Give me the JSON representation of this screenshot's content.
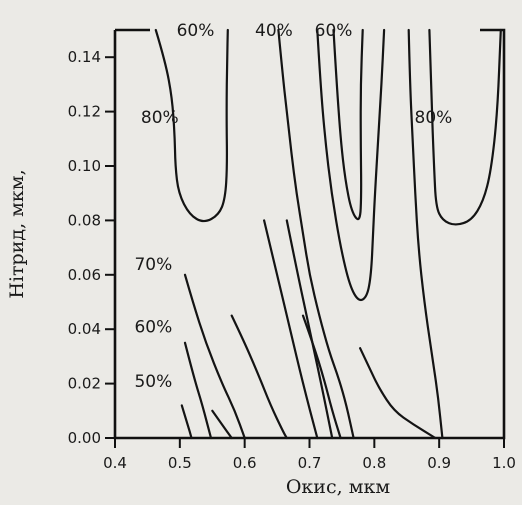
{
  "chart_data": {
    "type": "line",
    "title": "",
    "xlabel": "Окис, мкм",
    "ylabel": "Нітрид, мкм,",
    "xlim": [
      0.4,
      1.0
    ],
    "ylim": [
      0.0,
      0.15
    ],
    "x_ticks": [
      "0.4",
      "0.5",
      "0.6",
      "0.7",
      "0.8",
      "0.9",
      "1.0"
    ],
    "x_tick_values": [
      0.4,
      0.5,
      0.6,
      0.7,
      0.8,
      0.9,
      1.0
    ],
    "y_ticks": [
      "0.00",
      "0.02",
      "0.04",
      "0.06",
      "0.08",
      "0.10",
      "0.12",
      "0.14"
    ],
    "y_tick_values": [
      0.0,
      0.02,
      0.04,
      0.06,
      0.08,
      0.1,
      0.12,
      0.14
    ],
    "grid": false,
    "series": [
      {
        "label": "60%",
        "points": [
          [
            0.463,
            0.15
          ],
          [
            0.478,
            0.138
          ],
          [
            0.488,
            0.125
          ],
          [
            0.492,
            0.112
          ],
          [
            0.493,
            0.1
          ],
          [
            0.498,
            0.09
          ],
          [
            0.515,
            0.082
          ],
          [
            0.537,
            0.079
          ],
          [
            0.56,
            0.082
          ],
          [
            0.57,
            0.088
          ],
          [
            0.573,
            0.1
          ],
          [
            0.572,
            0.12
          ],
          [
            0.573,
            0.14
          ],
          [
            0.574,
            0.15
          ]
        ]
      },
      {
        "label": "",
        "points": [
          [
            0.652,
            0.15
          ],
          [
            0.658,
            0.135
          ],
          [
            0.665,
            0.12
          ],
          [
            0.672,
            0.105
          ],
          [
            0.68,
            0.09
          ],
          [
            0.69,
            0.075
          ],
          [
            0.7,
            0.06
          ],
          [
            0.715,
            0.045
          ],
          [
            0.73,
            0.032
          ],
          [
            0.745,
            0.022
          ],
          [
            0.757,
            0.012
          ],
          [
            0.768,
            0.0
          ]
        ]
      },
      {
        "label": "",
        "points": [
          [
            0.712,
            0.15
          ],
          [
            0.717,
            0.13
          ],
          [
            0.724,
            0.11
          ],
          [
            0.734,
            0.09
          ],
          [
            0.748,
            0.07
          ],
          [
            0.762,
            0.056
          ],
          [
            0.776,
            0.05
          ],
          [
            0.789,
            0.052
          ],
          [
            0.795,
            0.06
          ],
          [
            0.798,
            0.075
          ],
          [
            0.801,
            0.09
          ],
          [
            0.806,
            0.11
          ],
          [
            0.811,
            0.13
          ],
          [
            0.815,
            0.15
          ]
        ]
      },
      {
        "label": "40%",
        "points": [
          [
            0.737,
            0.15
          ],
          [
            0.742,
            0.13
          ],
          [
            0.748,
            0.11
          ],
          [
            0.755,
            0.095
          ],
          [
            0.765,
            0.083
          ],
          [
            0.778,
            0.079
          ],
          [
            0.78,
            0.09
          ],
          [
            0.779,
            0.11
          ],
          [
            0.779,
            0.13
          ],
          [
            0.782,
            0.15
          ]
        ]
      },
      {
        "label": "60%",
        "points": [
          [
            0.853,
            0.15
          ],
          [
            0.855,
            0.13
          ],
          [
            0.859,
            0.11
          ],
          [
            0.863,
            0.09
          ],
          [
            0.868,
            0.07
          ],
          [
            0.877,
            0.05
          ],
          [
            0.888,
            0.032
          ],
          [
            0.898,
            0.016
          ],
          [
            0.905,
            0.0
          ]
        ]
      },
      {
        "label": "",
        "points": [
          [
            0.885,
            0.15
          ],
          [
            0.888,
            0.125
          ],
          [
            0.892,
            0.1
          ],
          [
            0.895,
            0.085
          ],
          [
            0.905,
            0.08
          ],
          [
            0.925,
            0.078
          ],
          [
            0.95,
            0.08
          ],
          [
            0.968,
            0.087
          ],
          [
            0.98,
            0.098
          ],
          [
            0.99,
            0.12
          ],
          [
            0.995,
            0.15
          ]
        ]
      },
      {
        "label": "70%",
        "points": [
          [
            0.58,
            0.045
          ],
          [
            0.6,
            0.035
          ],
          [
            0.62,
            0.024
          ],
          [
            0.64,
            0.012
          ],
          [
            0.66,
            0.002
          ],
          [
            0.665,
            0.0
          ]
        ]
      },
      {
        "label": "",
        "points": [
          [
            0.55,
            0.01
          ],
          [
            0.565,
            0.005
          ],
          [
            0.58,
            0.0
          ]
        ]
      },
      {
        "label": "",
        "points": [
          [
            0.63,
            0.08
          ],
          [
            0.65,
            0.06
          ],
          [
            0.67,
            0.04
          ],
          [
            0.69,
            0.02
          ],
          [
            0.712,
            0.0
          ]
        ]
      },
      {
        "label": "",
        "points": [
          [
            0.69,
            0.045
          ],
          [
            0.705,
            0.035
          ],
          [
            0.722,
            0.022
          ],
          [
            0.735,
            0.01
          ],
          [
            0.748,
            0.0
          ]
        ]
      },
      {
        "label": "",
        "points": [
          [
            0.665,
            0.08
          ],
          [
            0.682,
            0.06
          ],
          [
            0.7,
            0.04
          ],
          [
            0.718,
            0.02
          ],
          [
            0.735,
            0.0
          ]
        ]
      },
      {
        "label": "",
        "points": [
          [
            0.778,
            0.033
          ],
          [
            0.792,
            0.026
          ],
          [
            0.808,
            0.018
          ],
          [
            0.83,
            0.01
          ],
          [
            0.86,
            0.005
          ],
          [
            0.894,
            0.0
          ]
        ]
      },
      {
        "label": "",
        "points": [
          [
            0.508,
            0.06
          ],
          [
            0.52,
            0.05
          ],
          [
            0.54,
            0.035
          ],
          [
            0.565,
            0.02
          ],
          [
            0.585,
            0.01
          ],
          [
            0.6,
            0.0
          ]
        ]
      },
      {
        "label": "",
        "points": [
          [
            0.508,
            0.035
          ],
          [
            0.522,
            0.022
          ],
          [
            0.535,
            0.012
          ],
          [
            0.548,
            0.0
          ]
        ]
      },
      {
        "label": "",
        "points": [
          [
            0.503,
            0.012
          ],
          [
            0.512,
            0.005
          ],
          [
            0.518,
            0.0
          ]
        ]
      }
    ],
    "labels": [
      {
        "text": "60%",
        "x": 0.495,
        "y": 0.15
      },
      {
        "text": "40%",
        "x": 0.616,
        "y": 0.15
      },
      {
        "text": "60%",
        "x": 0.708,
        "y": 0.15
      },
      {
        "text": "80%",
        "x": 0.44,
        "y": 0.118
      },
      {
        "text": "80%",
        "x": 0.862,
        "y": 0.118
      },
      {
        "text": "70%",
        "x": 0.43,
        "y": 0.064
      },
      {
        "text": "60%",
        "x": 0.43,
        "y": 0.041
      },
      {
        "text": "50%",
        "x": 0.43,
        "y": 0.021
      }
    ]
  }
}
